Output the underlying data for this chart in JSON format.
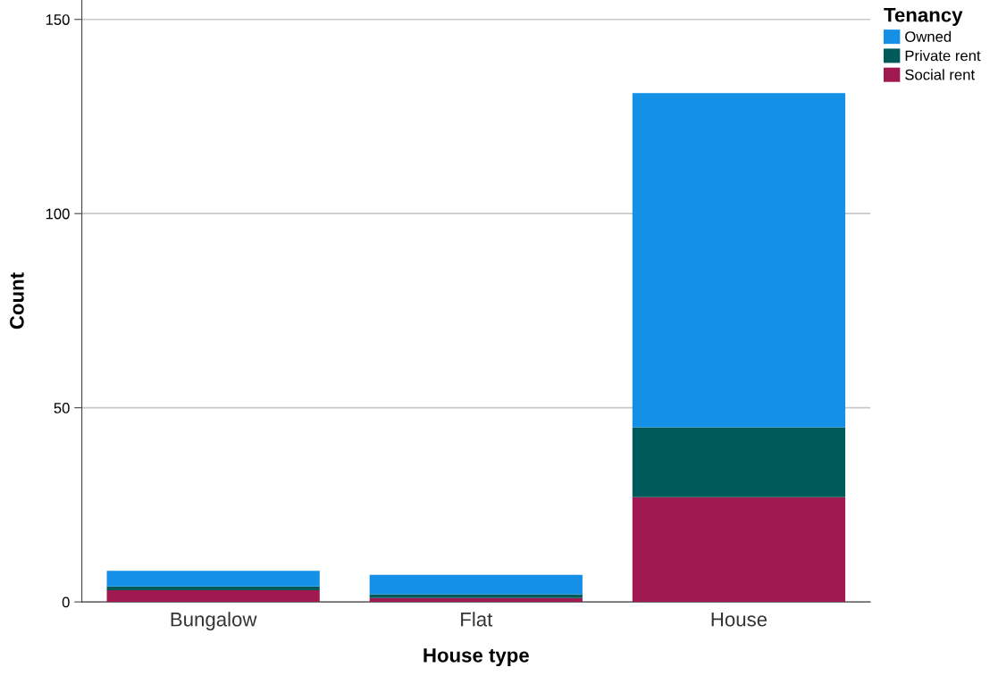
{
  "chart_data": {
    "type": "bar",
    "stacked": true,
    "xlabel": "House type",
    "ylabel": "Count",
    "legend_title": "Tenancy",
    "legend": "top right",
    "categories": [
      "Bungalow",
      "Flat",
      "House"
    ],
    "series": [
      {
        "name": "Social rent",
        "color": "#a01950",
        "values": [
          3,
          1,
          27
        ]
      },
      {
        "name": "Private rent",
        "color": "#005a5a",
        "values": [
          1,
          1,
          18
        ]
      },
      {
        "name": "Owned",
        "color": "#1491e6",
        "values": [
          4,
          5,
          86
        ]
      }
    ],
    "ylim": [
      0,
      155
    ],
    "yticks": [
      0,
      50,
      100,
      150
    ],
    "grid": "y"
  }
}
